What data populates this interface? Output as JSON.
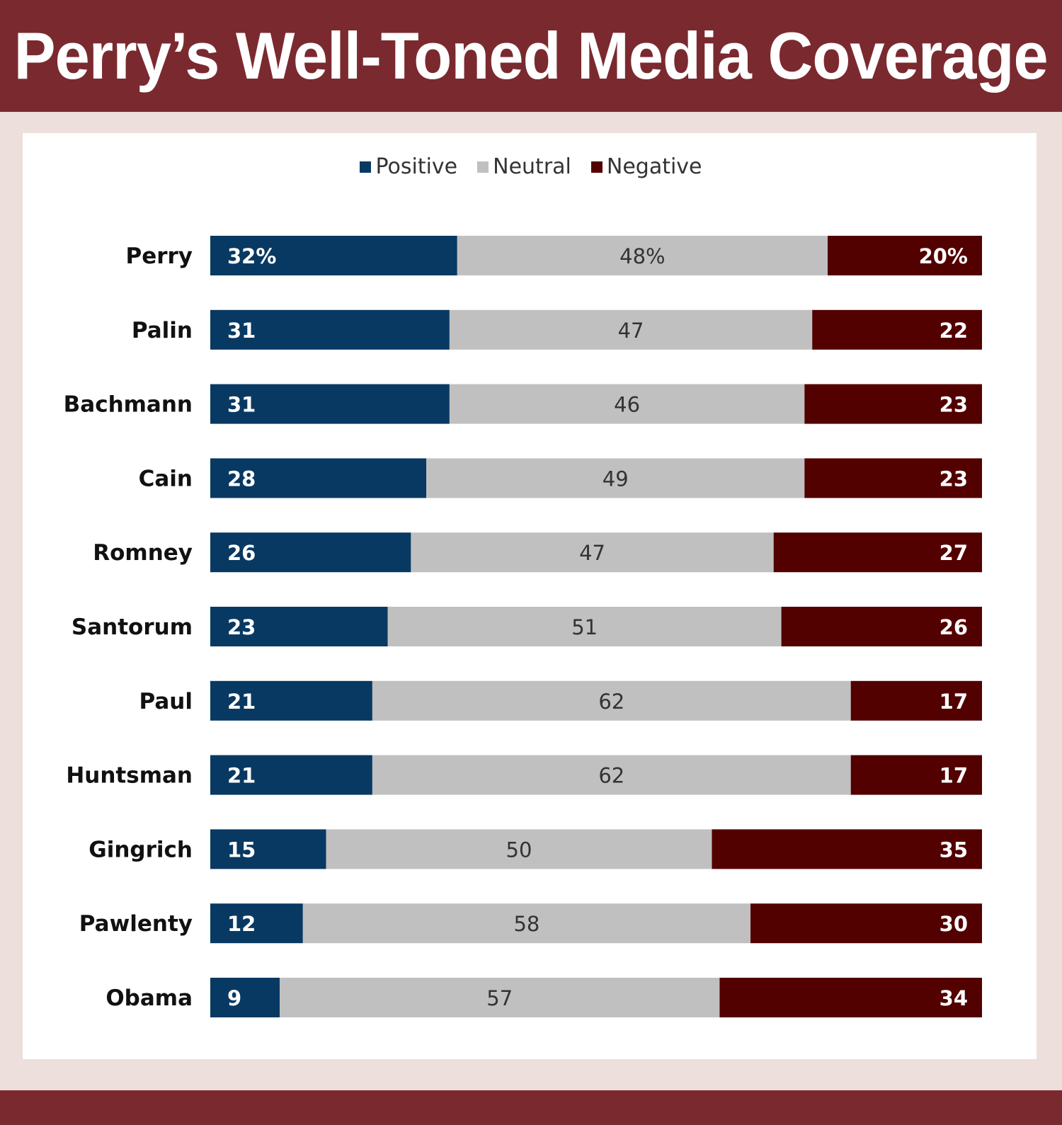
{
  "header": {
    "title": "Perry’s Well-Toned Media Coverage"
  },
  "colors": {
    "positive": "#083963",
    "neutral": "#c0c0c0",
    "negative": "#520000",
    "header": "#7a2a2f"
  },
  "chart_data": {
    "type": "bar",
    "orientation": "horizontal",
    "stacked": true,
    "legend_position": "top",
    "categories": [
      "Perry",
      "Palin",
      "Bachmann",
      "Cain",
      "Romney",
      "Santorum",
      "Paul",
      "Huntsman",
      "Gingrich",
      "Pawlenty",
      "Obama"
    ],
    "series": [
      {
        "name": "Positive",
        "values": [
          32,
          31,
          31,
          28,
          26,
          23,
          21,
          21,
          15,
          12,
          9
        ],
        "labels": [
          "32%",
          "31",
          "31",
          "28",
          "26",
          "23",
          "21",
          "21",
          "15",
          "12",
          "9"
        ]
      },
      {
        "name": "Neutral",
        "values": [
          48,
          47,
          46,
          49,
          47,
          51,
          62,
          62,
          50,
          58,
          57
        ],
        "labels": [
          "48%",
          "47",
          "46",
          "49",
          "47",
          "51",
          "62",
          "62",
          "50",
          "58",
          "57"
        ]
      },
      {
        "name": "Negative",
        "values": [
          20,
          22,
          23,
          23,
          27,
          26,
          17,
          17,
          35,
          30,
          34
        ],
        "labels": [
          "20%",
          "22",
          "23",
          "23",
          "27",
          "26",
          "17",
          "17",
          "35",
          "30",
          "34"
        ]
      }
    ],
    "xlim": [
      0,
      100
    ]
  }
}
